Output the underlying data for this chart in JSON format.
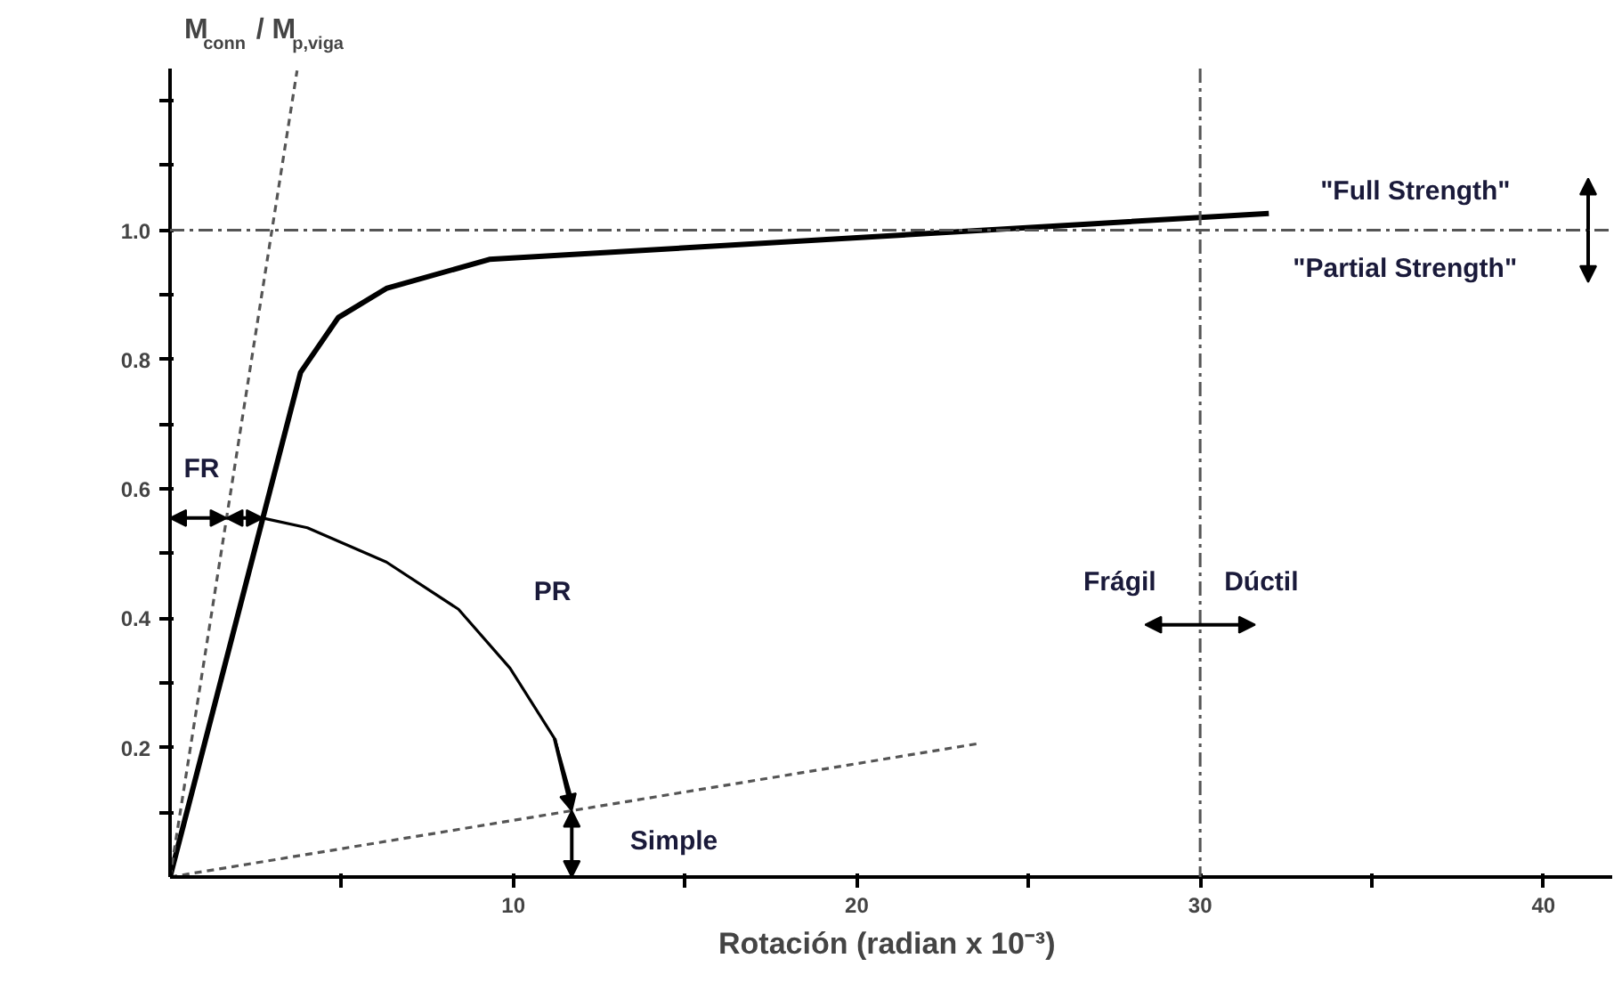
{
  "chart_data": {
    "type": "line",
    "xlabel": "Rotación  (radian x 10⁻³)",
    "ylabel": "M$_{conn}$ / M$_{p,viga}$",
    "xlim": [
      0,
      42
    ],
    "ylim": [
      0,
      1.25
    ],
    "xticks": [
      {
        "value": 5,
        "label": null
      },
      10,
      {
        "value": 15,
        "label": null
      },
      20,
      {
        "value": 25,
        "label": null
      },
      30,
      {
        "value": 35,
        "label": null
      },
      40
    ],
    "yticks": [
      {
        "value": 0.1,
        "label": null
      },
      0.2,
      {
        "value": 0.3,
        "label": null
      },
      0.4,
      {
        "value": 0.5,
        "label": null
      },
      0.6,
      {
        "value": 0.7,
        "label": null
      },
      0.8,
      {
        "value": 0.9,
        "label": null
      },
      {
        "value": 1,
        "label": "1.0"
      },
      {
        "value": 1.1,
        "label": null
      },
      {
        "value": 1.2,
        "label": null
      }
    ],
    "grid": false,
    "series": [
      {
        "color": "#000000",
        "x": [
          0,
          3.8,
          4.9,
          6.3,
          9.3,
          32
        ],
        "values": [
          0,
          0.78,
          0.865,
          0.91,
          0.955,
          1.026
        ]
      },
      {
        "color": "#000000",
        "x": [
          2.7,
          4,
          6.3,
          8.4,
          9.9,
          11.2,
          11.7
        ],
        "values": [
          0.555,
          0.54,
          0.487,
          0.414,
          0.323,
          0.214,
          0.12
        ]
      },
      {
        "color": "#555555",
        "line_style": "dashed",
        "x": [
          0,
          3.7
        ],
        "values": [
          0,
          1.247
        ]
      },
      {
        "color": "#555555",
        "line_style": "dashed",
        "x": [
          0,
          23.5
        ],
        "values": [
          0,
          0.206
        ]
      }
    ],
    "ref_lines": [
      {
        "axis": "y",
        "value": 1,
        "line_style": "dashdot",
        "color": "#555555"
      },
      {
        "axis": "x",
        "value": 30,
        "line_style": "dashdot",
        "color": "#555555"
      }
    ],
    "annotations": [
      "FR",
      "PR",
      "Simple",
      "Frágil",
      "Dúctil",
      "\"Full Strength\"",
      "\"Partial Strength\""
    ]
  }
}
